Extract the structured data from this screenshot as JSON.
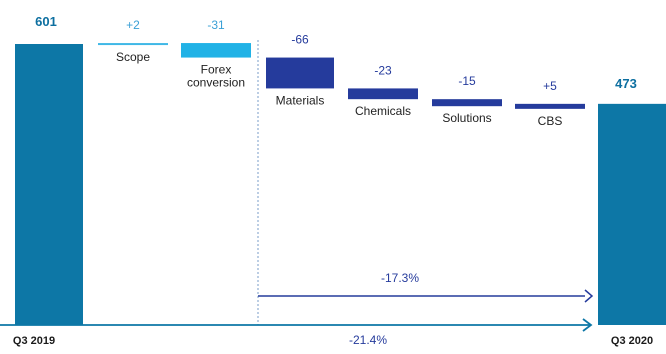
{
  "colors": {
    "total": "#0d77a6",
    "scope": "#3fb8e6",
    "forex": "#21b2e6",
    "segment": "#253b9c",
    "total_label": "#0d6fa0",
    "light_label": "#3aa0d6",
    "segment_label": "#253b9c",
    "category_text": "#222222",
    "arrow": "#253b9c",
    "baseline": "#0d77a6",
    "separator": "#7a9cc8",
    "footer_text": "#1a1a1a"
  },
  "chart_data": {
    "type": "waterfall",
    "ylim": [
      0,
      601
    ],
    "start": {
      "label": "Q3 2019",
      "value": 601,
      "value_text": "601"
    },
    "end": {
      "label": "Q3 2020",
      "value": 473,
      "value_text": "473"
    },
    "steps": [
      {
        "category": "Scope",
        "value": 2,
        "value_text": "+2",
        "style": "scope"
      },
      {
        "category": "Forex conversion",
        "category_lines": [
          "Forex",
          "conversion"
        ],
        "value": -31,
        "value_text": "-31",
        "style": "forex"
      },
      {
        "category": "Materials",
        "value": -66,
        "value_text": "-66",
        "style": "segment"
      },
      {
        "category": "Chemicals",
        "value": -23,
        "value_text": "-23",
        "style": "segment"
      },
      {
        "category": "Solutions",
        "value": -15,
        "value_text": "-15",
        "style": "segment"
      },
      {
        "category": "CBS",
        "value": 5,
        "value_text": "+5",
        "style": "segment"
      }
    ],
    "annotations": [
      {
        "id": "organic",
        "text": "-17.3%",
        "from_step": 2
      },
      {
        "id": "total",
        "text": "-21.4%"
      }
    ]
  }
}
